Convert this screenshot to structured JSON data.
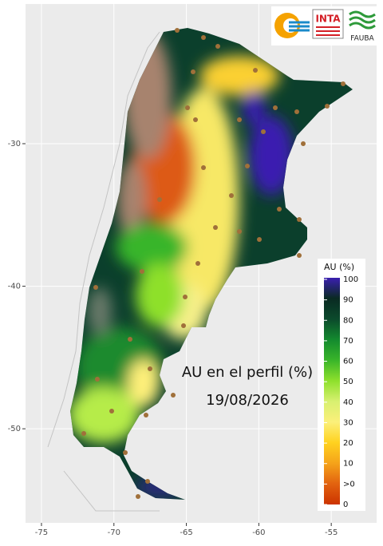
{
  "map": {
    "title": "AU en el perfil (%)",
    "date": "19/08/2026",
    "xlim": [
      -76.1,
      -51.87
    ],
    "ylim": [
      -56.6,
      -20.2
    ],
    "xticks": [
      -75,
      -70,
      -65,
      -60,
      -55
    ],
    "yticks": [
      -30,
      -40,
      -50
    ],
    "legend": {
      "title": "AU (%)",
      "labels": [
        100,
        90,
        80,
        70,
        60,
        50,
        40,
        30,
        20,
        10,
        ">0",
        0
      ],
      "colors": [
        "#3a1fb0",
        "#0a2a22",
        "#0b4a2c",
        "#138a2e",
        "#39b52a",
        "#8ee02c",
        "#d8f070",
        "#fbf07a",
        "#ffd21f",
        "#f5a31a",
        "#e2620f",
        "#cc3300"
      ]
    },
    "logos": {
      "inta": "INTA",
      "fauba": "FAUBA"
    }
  }
}
